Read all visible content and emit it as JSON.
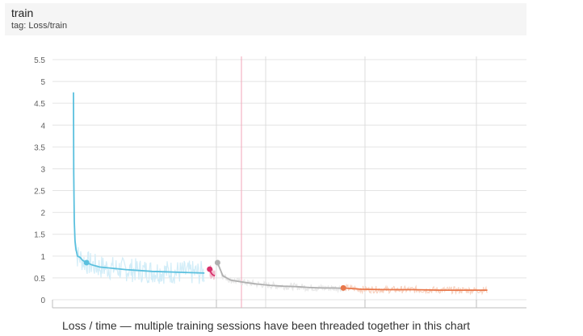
{
  "card": {
    "title": "train",
    "tag": "tag: Loss/train"
  },
  "caption": "Loss / time — multiple training sessions have been threaded together in this chart",
  "chart_data": {
    "type": "line",
    "title": "",
    "xlabel": "",
    "ylabel": "",
    "ylim": [
      0,
      5.5
    ],
    "yticks": [
      "0",
      "0.5",
      "1",
      "1.5",
      "2",
      "2.5",
      "3",
      "3.5",
      "4",
      "4.5",
      "5",
      "5.5"
    ],
    "grid": true,
    "legend": "none",
    "x_unit": "relative time (index)",
    "series": [
      {
        "color": "#5bc0de",
        "raw_color": "#cdebf7",
        "x": [
          0,
          0.1,
          0.3,
          0.6,
          1,
          1.5,
          2.5,
          3.5,
          5,
          7,
          10,
          15,
          20,
          25,
          30,
          35,
          40,
          45,
          50
        ],
        "y": [
          4.75,
          2.9,
          1.8,
          1.35,
          1.15,
          1.0,
          0.97,
          0.9,
          0.85,
          0.8,
          0.75,
          0.72,
          0.69,
          0.67,
          0.65,
          0.64,
          0.63,
          0.62,
          0.61
        ],
        "marker": {
          "x": 5,
          "y": 0.85
        }
      },
      {
        "color": "#d7306b",
        "raw_color": "#f2b5c8",
        "x": [
          52,
          52.5,
          53,
          53.5,
          54
        ],
        "y": [
          0.7,
          0.62,
          0.58,
          0.56,
          0.55
        ],
        "marker": {
          "x": 52,
          "y": 0.7
        }
      },
      {
        "color": "#b0b0b0",
        "raw_color": "#e5e5e5",
        "x": [
          55,
          57,
          60,
          65,
          70,
          75,
          80,
          85,
          90,
          95,
          100,
          103
        ],
        "y": [
          0.85,
          0.55,
          0.45,
          0.4,
          0.36,
          0.33,
          0.31,
          0.3,
          0.28,
          0.27,
          0.27,
          0.26
        ],
        "marker": {
          "x": 55,
          "y": 0.85
        }
      },
      {
        "color": "#e8774a",
        "raw_color": "#f7cdb9",
        "x": [
          103,
          110,
          120,
          130,
          140,
          150,
          158
        ],
        "y": [
          0.27,
          0.24,
          0.23,
          0.23,
          0.22,
          0.22,
          0.22
        ],
        "marker": {
          "x": 103,
          "y": 0.27
        }
      }
    ]
  }
}
